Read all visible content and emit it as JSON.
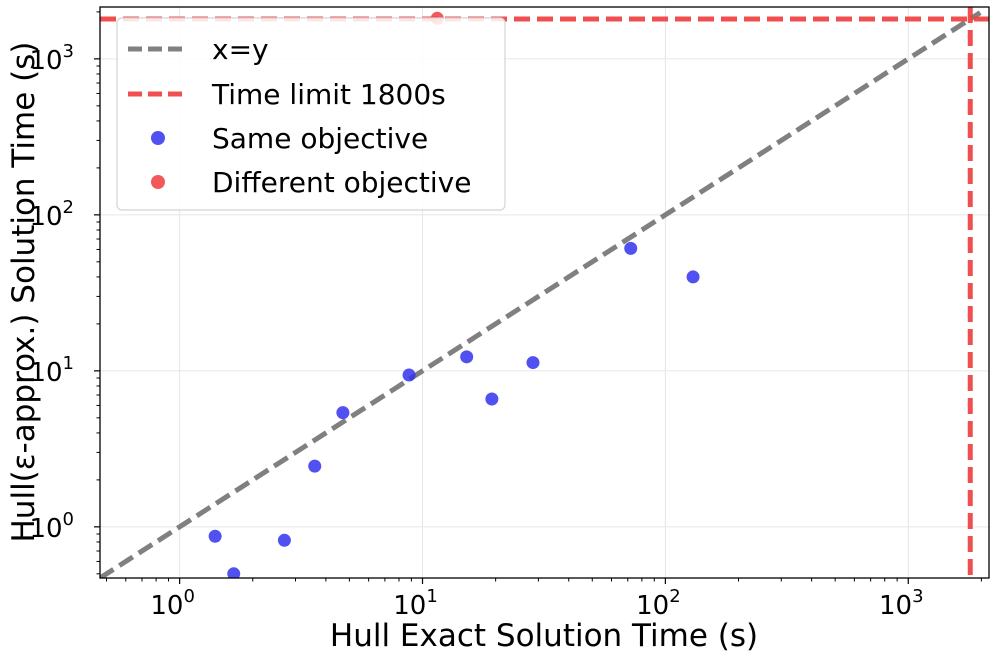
{
  "chart_data": {
    "type": "scatter",
    "title": "",
    "xlabel": "Hull Exact Solution Time (s)",
    "ylabel": "Hull(ε-approx.) Solution Time (s)",
    "xscale": "log",
    "yscale": "log",
    "xlim": [
      0.47,
      2150
    ],
    "ylim": [
      0.47,
      2150
    ],
    "grid": true,
    "legend_position": "top-left",
    "xticks": [
      {
        "value": 1,
        "base": "10",
        "exp": "0"
      },
      {
        "value": 10,
        "base": "10",
        "exp": "1"
      },
      {
        "value": 100,
        "base": "10",
        "exp": "2"
      },
      {
        "value": 1000,
        "base": "10",
        "exp": "3"
      }
    ],
    "yticks": [
      {
        "value": 1,
        "base": "10",
        "exp": "0"
      },
      {
        "value": 10,
        "base": "10",
        "exp": "1"
      },
      {
        "value": 100,
        "base": "10",
        "exp": "2"
      },
      {
        "value": 1000,
        "base": "10",
        "exp": "3"
      }
    ],
    "reference_lines": [
      {
        "name": "x=y",
        "kind": "diagonal",
        "color": "#808080",
        "style": "dashed"
      },
      {
        "name": "Time limit 1800s",
        "kind": "hv",
        "value": 1800,
        "color": "#f03c3c",
        "style": "dashed"
      }
    ],
    "series": [
      {
        "name": "Same objective",
        "color": "#3333ee",
        "points": [
          {
            "x": 1.4,
            "y": 0.87
          },
          {
            "x": 1.67,
            "y": 0.5
          },
          {
            "x": 2.7,
            "y": 0.82
          },
          {
            "x": 3.6,
            "y": 2.45
          },
          {
            "x": 4.7,
            "y": 5.4
          },
          {
            "x": 8.8,
            "y": 9.4
          },
          {
            "x": 15.2,
            "y": 12.3
          },
          {
            "x": 19.3,
            "y": 6.6
          },
          {
            "x": 28.5,
            "y": 11.3
          },
          {
            "x": 72,
            "y": 61
          },
          {
            "x": 130,
            "y": 40
          }
        ]
      },
      {
        "name": "Different objective",
        "color": "#f03c3c",
        "points": [
          {
            "x": 11.5,
            "y": 1820
          }
        ]
      }
    ]
  }
}
